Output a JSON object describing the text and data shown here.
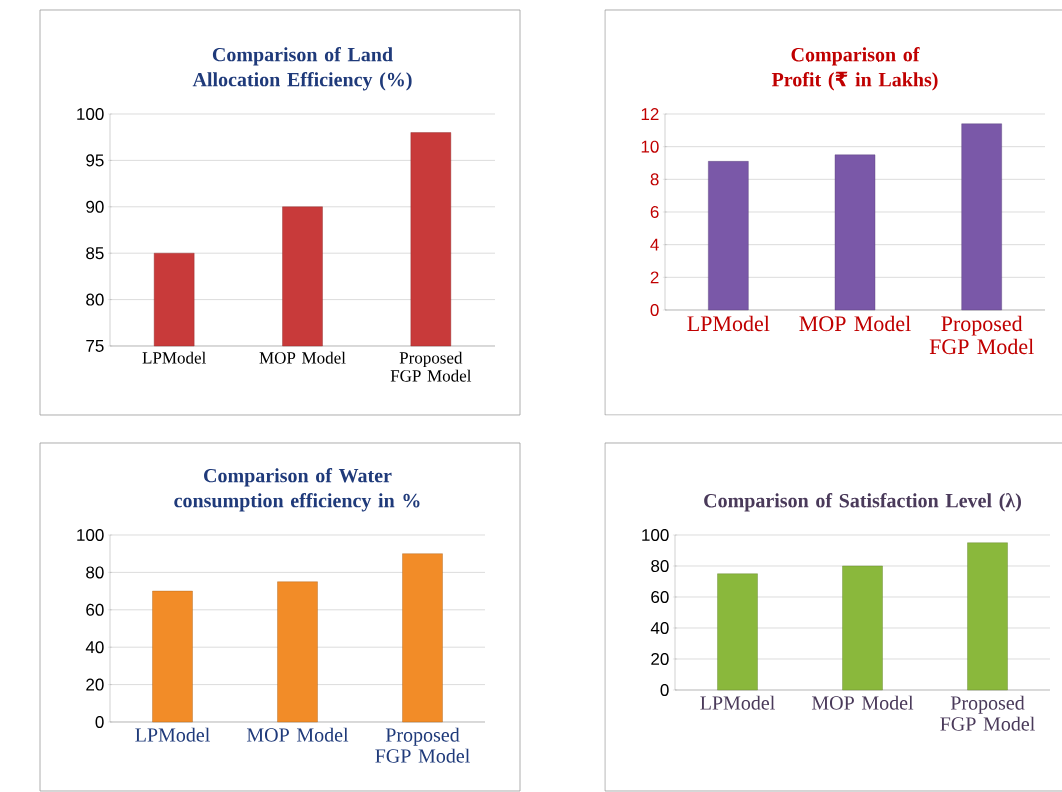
{
  "chart_data": [
    {
      "type": "bar",
      "title": "Comparison of Land Allocation Efficiency (%)",
      "categories": [
        "LPModel",
        "MOP Model",
        "Proposed FGP Model"
      ],
      "values": [
        85,
        90,
        98
      ],
      "color": "#c83a3a",
      "ylim": [
        75,
        100
      ],
      "yticks": [
        75,
        80,
        85,
        90,
        95,
        100
      ],
      "grid": "y"
    },
    {
      "type": "bar",
      "title": "Comparison of Profit (₹ in Lakhs)",
      "categories": [
        "LPModel",
        "MOP Model",
        "Proposed FGP Model"
      ],
      "values": [
        9.1,
        9.5,
        11.4
      ],
      "color": "#7a58a8",
      "ylim": [
        0,
        12
      ],
      "yticks": [
        0,
        2,
        4,
        6,
        8,
        10,
        12
      ],
      "grid": "y"
    },
    {
      "type": "bar",
      "title": "Comparison of Water consumption efficiency in %",
      "categories": [
        "LPModel",
        "MOP Model",
        "Proposed FGP Model"
      ],
      "values": [
        70,
        75,
        90
      ],
      "color": "#f28c28",
      "ylim": [
        0,
        100
      ],
      "yticks": [
        0,
        20,
        40,
        60,
        80,
        100
      ],
      "grid": "y"
    },
    {
      "type": "bar",
      "title": "Comparison of Satisfaction Level (λ)",
      "categories": [
        "LPModel",
        "MOP Model",
        "Proposed FGP Model"
      ],
      "values": [
        75,
        80,
        95
      ],
      "color": "#8ab83c",
      "ylim": [
        0,
        100
      ],
      "yticks": [
        0,
        20,
        40,
        60,
        80,
        100
      ],
      "grid": "y"
    }
  ]
}
